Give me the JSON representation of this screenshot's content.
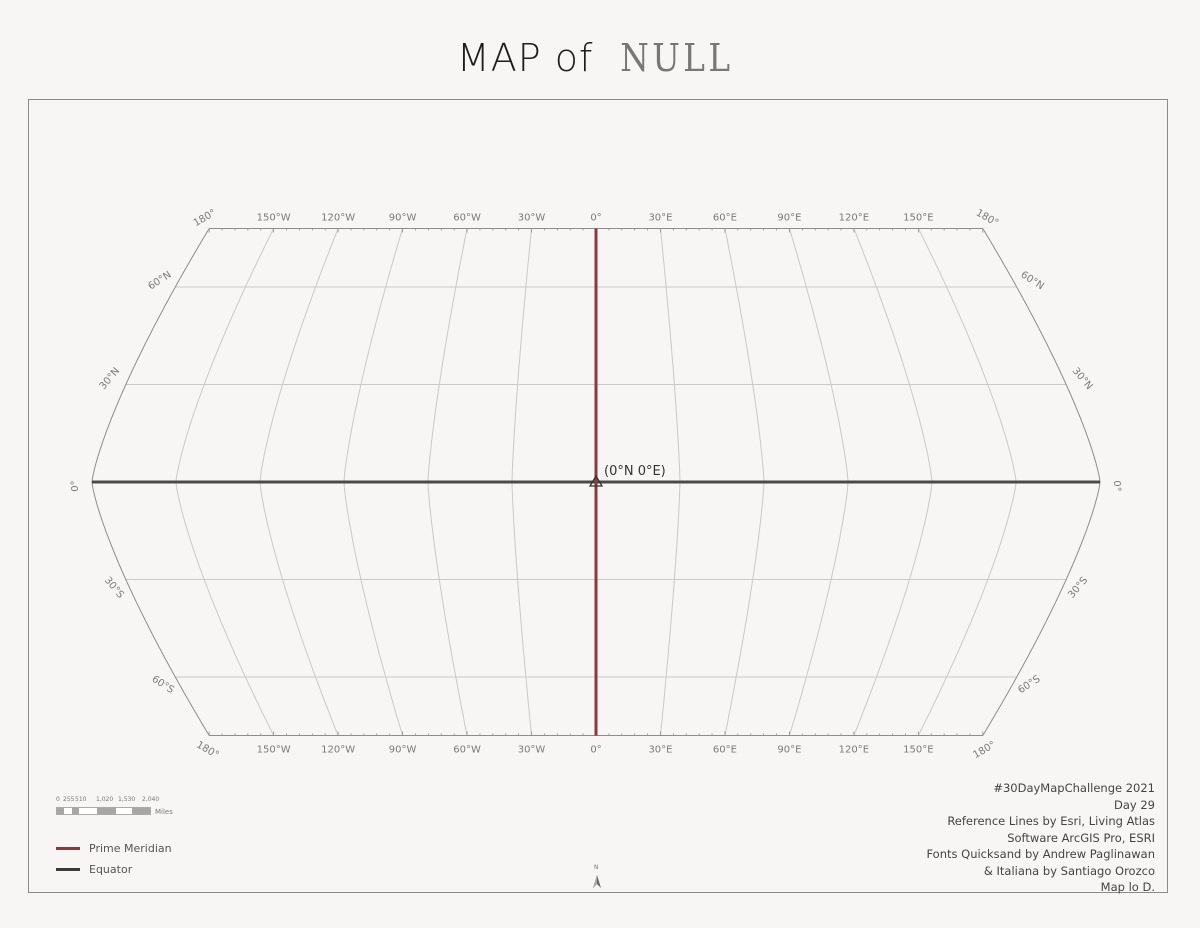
{
  "title": {
    "prefix": "MAP of",
    "name": "NULL"
  },
  "graticule": {
    "longitude_labels": [
      "180°",
      "150°W",
      "120°W",
      "90°W",
      "60°W",
      "30°W",
      "0°",
      "30°E",
      "60°E",
      "90°E",
      "120°E",
      "150°E",
      "180°"
    ],
    "latitude_labels_north": [
      "60°N",
      "30°N"
    ],
    "latitude_labels_south": [
      "30°S",
      "60°S"
    ],
    "equator_label": "0°",
    "line_color": "#c9c9c9",
    "border_color": "#8c8c8c"
  },
  "null_island": {
    "label": "(0°N 0°E)"
  },
  "prime_meridian": {
    "color": "#8b3a3a"
  },
  "equator": {
    "color": "#4a4a4a"
  },
  "scale_bar": {
    "tick_labels": [
      "0",
      "255",
      "510",
      "1,020",
      "1,530",
      "2,040"
    ],
    "unit": "Miles"
  },
  "legend": [
    {
      "label": "Prime Meridian",
      "color": "#8b3a3a"
    },
    {
      "label": "Equator",
      "color": "#3a3a3a"
    }
  ],
  "credits": [
    "#30DayMapChallenge 2021",
    "Day 29",
    "Reference Lines by Esri, Living Atlas",
    "Software ArcGIS Pro, ESRI",
    "Fonts Quicksand by Andrew Paglinawan",
    "& Italiana by Santiago Orozco",
    "Map lo D."
  ],
  "north_arrow": {
    "label": "N"
  }
}
